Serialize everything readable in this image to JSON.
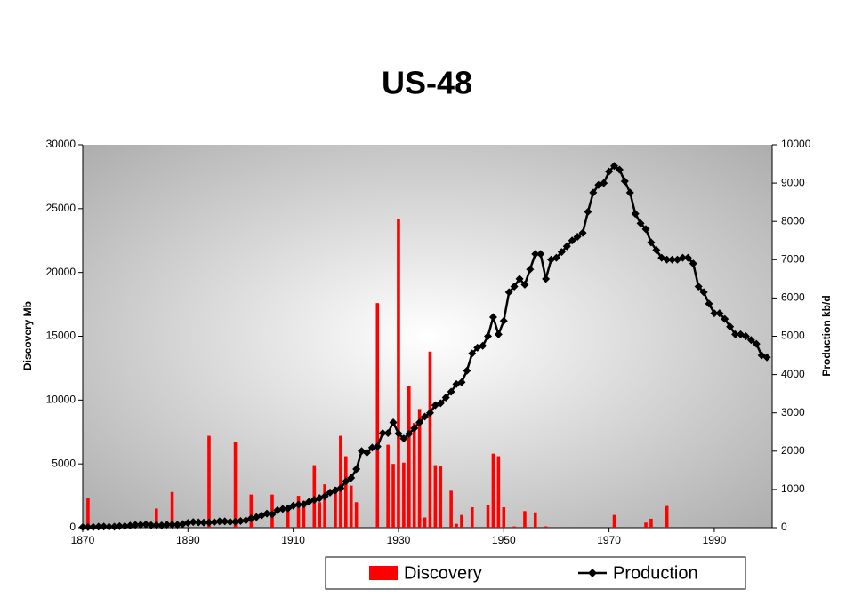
{
  "chart_data": {
    "type": "bar-line",
    "title": "US-48",
    "y_label": "Discovery Mb",
    "y2_label": "Production kb/d",
    "xlim": [
      1870,
      2001
    ],
    "xticks": [
      1870,
      1890,
      1910,
      1930,
      1950,
      1970,
      1990
    ],
    "ylim": [
      0,
      30000
    ],
    "yticks": [
      0,
      5000,
      10000,
      15000,
      20000,
      25000,
      30000
    ],
    "y2lim": [
      0,
      10000
    ],
    "y2ticks": [
      0,
      1000,
      2000,
      3000,
      4000,
      5000,
      6000,
      7000,
      8000,
      9000,
      10000
    ],
    "legend": "bottom",
    "series": [
      {
        "name": "Discovery",
        "type": "bar",
        "color": "#ff0000",
        "x": [
          1871,
          1884,
          1887,
          1894,
          1899,
          1902,
          1906,
          1909,
          1911,
          1912,
          1914,
          1915,
          1916,
          1918,
          1919,
          1920,
          1921,
          1922,
          1926,
          1928,
          1929,
          1930,
          1931,
          1932,
          1933,
          1934,
          1935,
          1936,
          1937,
          1938,
          1940,
          1941,
          1942,
          1944,
          1947,
          1948,
          1949,
          1950,
          1952,
          1954,
          1956,
          1958,
          1971,
          1977,
          1978,
          1981
        ],
        "values": [
          2300,
          1500,
          2800,
          7200,
          6700,
          2600,
          2600,
          1700,
          2500,
          2100,
          4900,
          2000,
          3400,
          3200,
          7200,
          5600,
          3300,
          2000,
          17600,
          6500,
          5000,
          24200,
          5100,
          11100,
          8200,
          9300,
          800,
          13800,
          4900,
          4800,
          2900,
          300,
          1000,
          1600,
          1800,
          5800,
          5600,
          1600,
          100,
          1300,
          1200,
          100,
          1000,
          400,
          700,
          1700
        ]
      },
      {
        "name": "Production",
        "type": "line",
        "axis": "y2",
        "color": "#000000",
        "x": [
          1870,
          1871,
          1872,
          1873,
          1874,
          1875,
          1876,
          1877,
          1878,
          1879,
          1880,
          1881,
          1882,
          1883,
          1884,
          1885,
          1886,
          1887,
          1888,
          1889,
          1890,
          1891,
          1892,
          1893,
          1894,
          1895,
          1896,
          1897,
          1898,
          1899,
          1900,
          1901,
          1902,
          1903,
          1904,
          1905,
          1906,
          1907,
          1908,
          1909,
          1910,
          1911,
          1912,
          1913,
          1914,
          1915,
          1916,
          1917,
          1918,
          1919,
          1920,
          1921,
          1922,
          1923,
          1924,
          1925,
          1926,
          1927,
          1928,
          1929,
          1930,
          1931,
          1932,
          1933,
          1934,
          1935,
          1936,
          1937,
          1938,
          1939,
          1940,
          1941,
          1942,
          1943,
          1944,
          1945,
          1946,
          1947,
          1948,
          1949,
          1950,
          1951,
          1952,
          1953,
          1954,
          1955,
          1956,
          1957,
          1958,
          1959,
          1960,
          1961,
          1962,
          1963,
          1964,
          1965,
          1966,
          1967,
          1968,
          1969,
          1970,
          1971,
          1972,
          1973,
          1974,
          1975,
          1976,
          1977,
          1978,
          1979,
          1980,
          1981,
          1982,
          1983,
          1984,
          1985,
          1986,
          1987,
          1988,
          1989,
          1990,
          1991,
          1992,
          1993,
          1994,
          1995,
          1996,
          1997,
          1998,
          1999,
          2000
        ],
        "values": [
          14,
          14,
          17,
          27,
          30,
          24,
          25,
          37,
          42,
          55,
          72,
          76,
          83,
          64,
          66,
          60,
          77,
          78,
          75,
          96,
          125,
          149,
          138,
          133,
          136,
          145,
          166,
          166,
          151,
          156,
          174,
          190,
          243,
          275,
          320,
          367,
          347,
          454,
          489,
          502,
          574,
          603,
          610,
          680,
          727,
          773,
          821,
          919,
          975,
          1032,
          1210,
          1300,
          1530,
          2000,
          1960,
          2090,
          2120,
          2470,
          2470,
          2750,
          2460,
          2330,
          2450,
          2600,
          2750,
          2900,
          3000,
          3200,
          3250,
          3400,
          3550,
          3750,
          3800,
          4100,
          4550,
          4700,
          4750,
          5000,
          5500,
          5050,
          5400,
          6150,
          6300,
          6500,
          6350,
          6750,
          7150,
          7150,
          6500,
          7000,
          7050,
          7200,
          7350,
          7500,
          7600,
          7700,
          8250,
          8750,
          8950,
          9000,
          9300,
          9450,
          9350,
          9050,
          8750,
          8200,
          7950,
          7800,
          7450,
          7250,
          7050,
          7000,
          7000,
          7000,
          7050,
          7050,
          6900,
          6300,
          6150,
          5850,
          5600,
          5600,
          5450,
          5250,
          5050,
          5050,
          5000,
          4900,
          4800,
          4500,
          4450
        ]
      }
    ]
  }
}
